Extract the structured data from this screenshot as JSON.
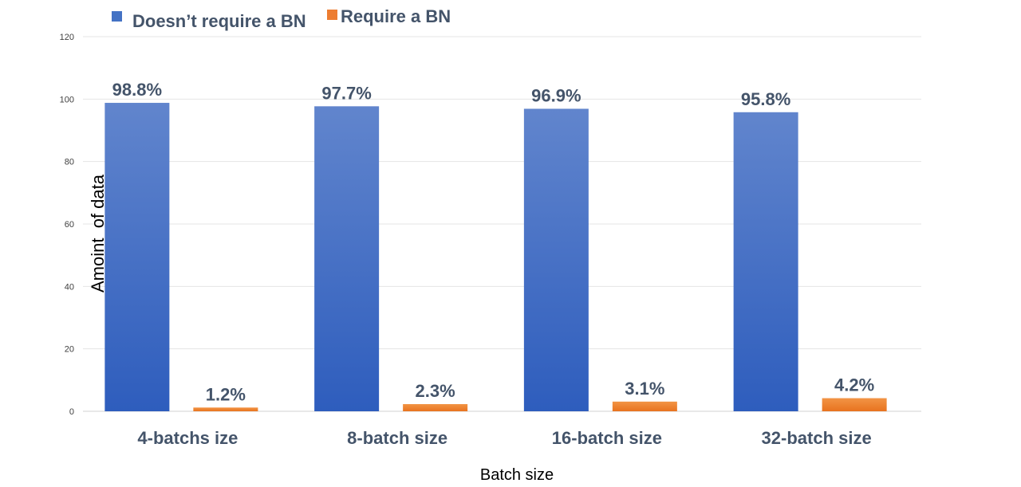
{
  "chart_data": {
    "type": "bar",
    "title": "",
    "xlabel": "Batch size",
    "ylabel": "Amoint  of data",
    "ylim": [
      0,
      120
    ],
    "yticks": [
      0,
      20,
      40,
      60,
      80,
      100,
      120
    ],
    "categories": [
      "4-batchs ize",
      "8-batch size",
      "16-batch size",
      "32-batch size"
    ],
    "series": [
      {
        "name": "Doesn’t require a BN",
        "values": [
          98.8,
          97.7,
          96.9,
          95.8
        ],
        "labels": [
          "98.8%",
          "97.7%",
          "96.9%",
          "95.8%"
        ],
        "color": "#4472C4"
      },
      {
        "name": "Require a BN",
        "values": [
          1.2,
          2.3,
          3.1,
          4.2
        ],
        "labels": [
          "1.2%",
          "2.3%",
          "3.1%",
          "4.2%"
        ],
        "color": "#ED7D31"
      }
    ],
    "grid": true,
    "legend": "top-left"
  }
}
